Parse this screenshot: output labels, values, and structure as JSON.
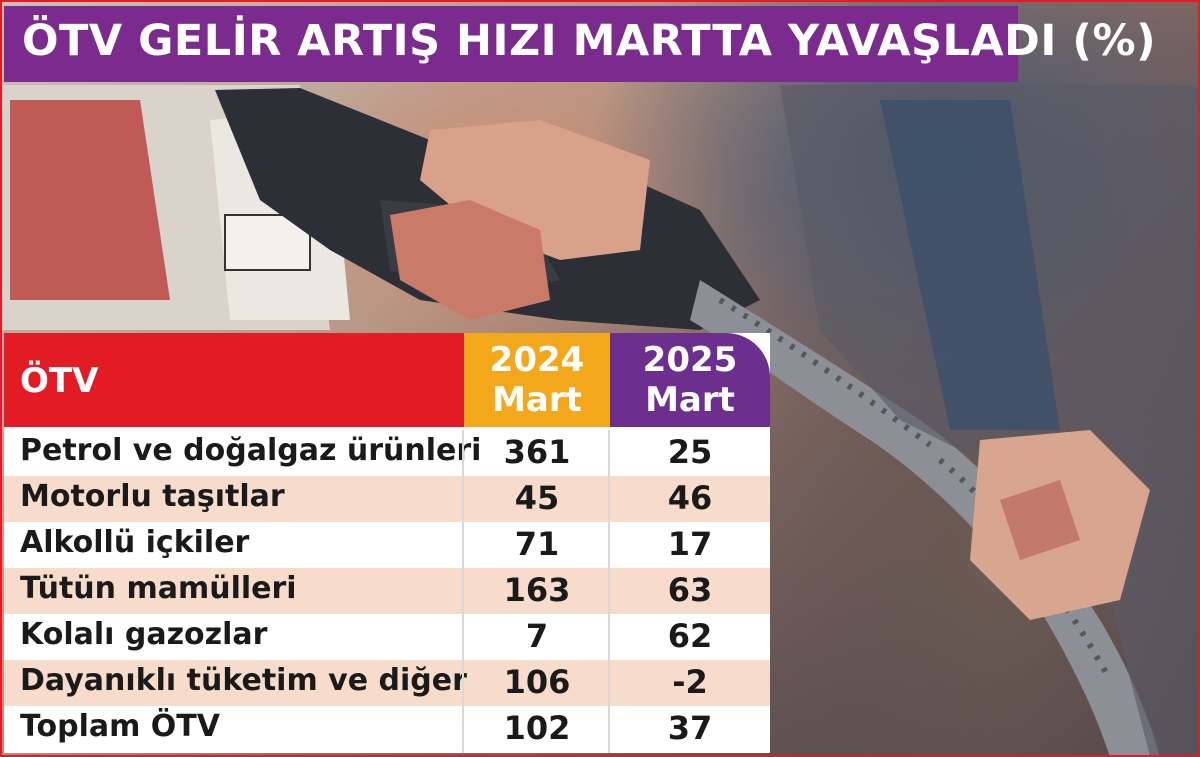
{
  "title": "ÖTV GELİR ARTIŞ HIZI MARTTA YAVAŞLADI (%)",
  "colors": {
    "title_bg": "#7b2a8d",
    "header_label_bg": "#e21b24",
    "header_2024_bg": "#f2a81a",
    "header_2025_bg": "#6c2f8e",
    "row_shade": "#f7dccb",
    "border": "#e21b24"
  },
  "table": {
    "header_label": "ÖTV",
    "columns": [
      {
        "year": "2024",
        "month": "Mart"
      },
      {
        "year": "2025",
        "month": "Mart"
      }
    ]
  },
  "chart_data": {
    "type": "table",
    "title": "ÖTV GELİR ARTIŞ HIZI MARTTA YAVAŞLADI (%)",
    "row_header": "ÖTV",
    "columns": [
      "2024 Mart",
      "2025 Mart"
    ],
    "rows": [
      {
        "label": "Petrol ve doğalgaz ürünleri",
        "values": [
          361,
          25
        ]
      },
      {
        "label": "Motorlu taşıtlar",
        "values": [
          45,
          46
        ]
      },
      {
        "label": "Alkollü içkiler",
        "values": [
          71,
          17
        ]
      },
      {
        "label": "Tütün mamülleri",
        "values": [
          163,
          63
        ]
      },
      {
        "label": "Kolalı gazozlar",
        "values": [
          7,
          62
        ]
      },
      {
        "label": "Dayanıklı tüketim ve diğer",
        "values": [
          106,
          -2
        ]
      },
      {
        "label": "Toplam ÖTV",
        "values": [
          102,
          37
        ]
      }
    ]
  }
}
